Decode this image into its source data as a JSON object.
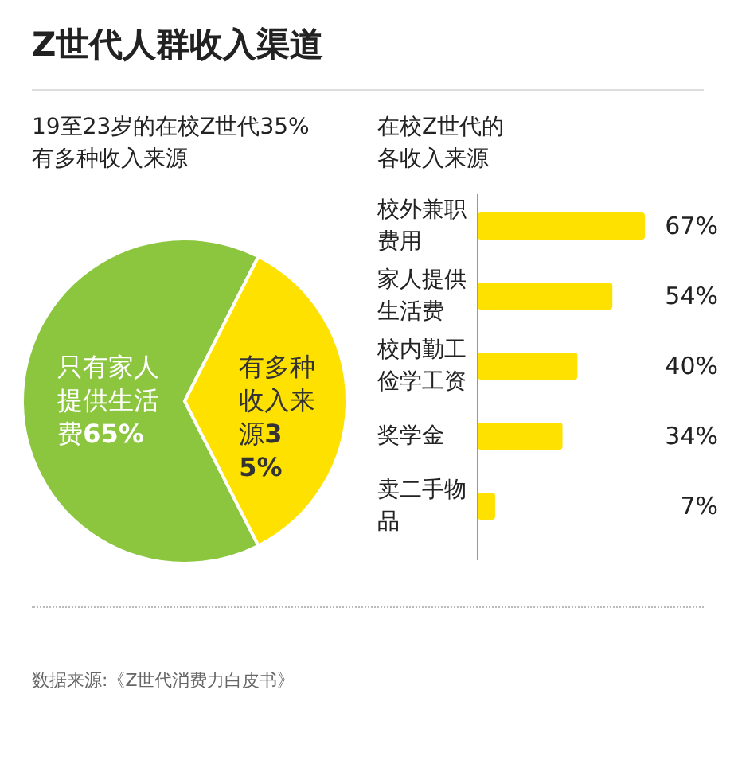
{
  "chart_data": [
    {
      "type": "other",
      "title": "Z世代人群收入渠道",
      "annotations": [
        "数据来源:《Z世代消费力白皮书》"
      ]
    },
    {
      "type": "pie",
      "title": "19至23岁的在校Z世代35%有多种收入来源",
      "categories": [
        "只有家人提供生活费",
        "有多种收入来源"
      ],
      "values": [
        65,
        35
      ],
      "colors": [
        "#8cc63f",
        "#ffe100"
      ],
      "value_labels": [
        "65%",
        "35%"
      ]
    },
    {
      "type": "bar",
      "orientation": "horizontal",
      "title": "在校Z世代的各收入来源",
      "categories": [
        "校外兼职费用",
        "家人提供生活费",
        "校内勤工俭学工资",
        "奖学金",
        "卖二手物品"
      ],
      "values": [
        67,
        54,
        40,
        34,
        7
      ],
      "color": "#ffe100",
      "value_labels": [
        "67%",
        "54%",
        "40%",
        "34%",
        "7%"
      ]
    }
  ]
}
